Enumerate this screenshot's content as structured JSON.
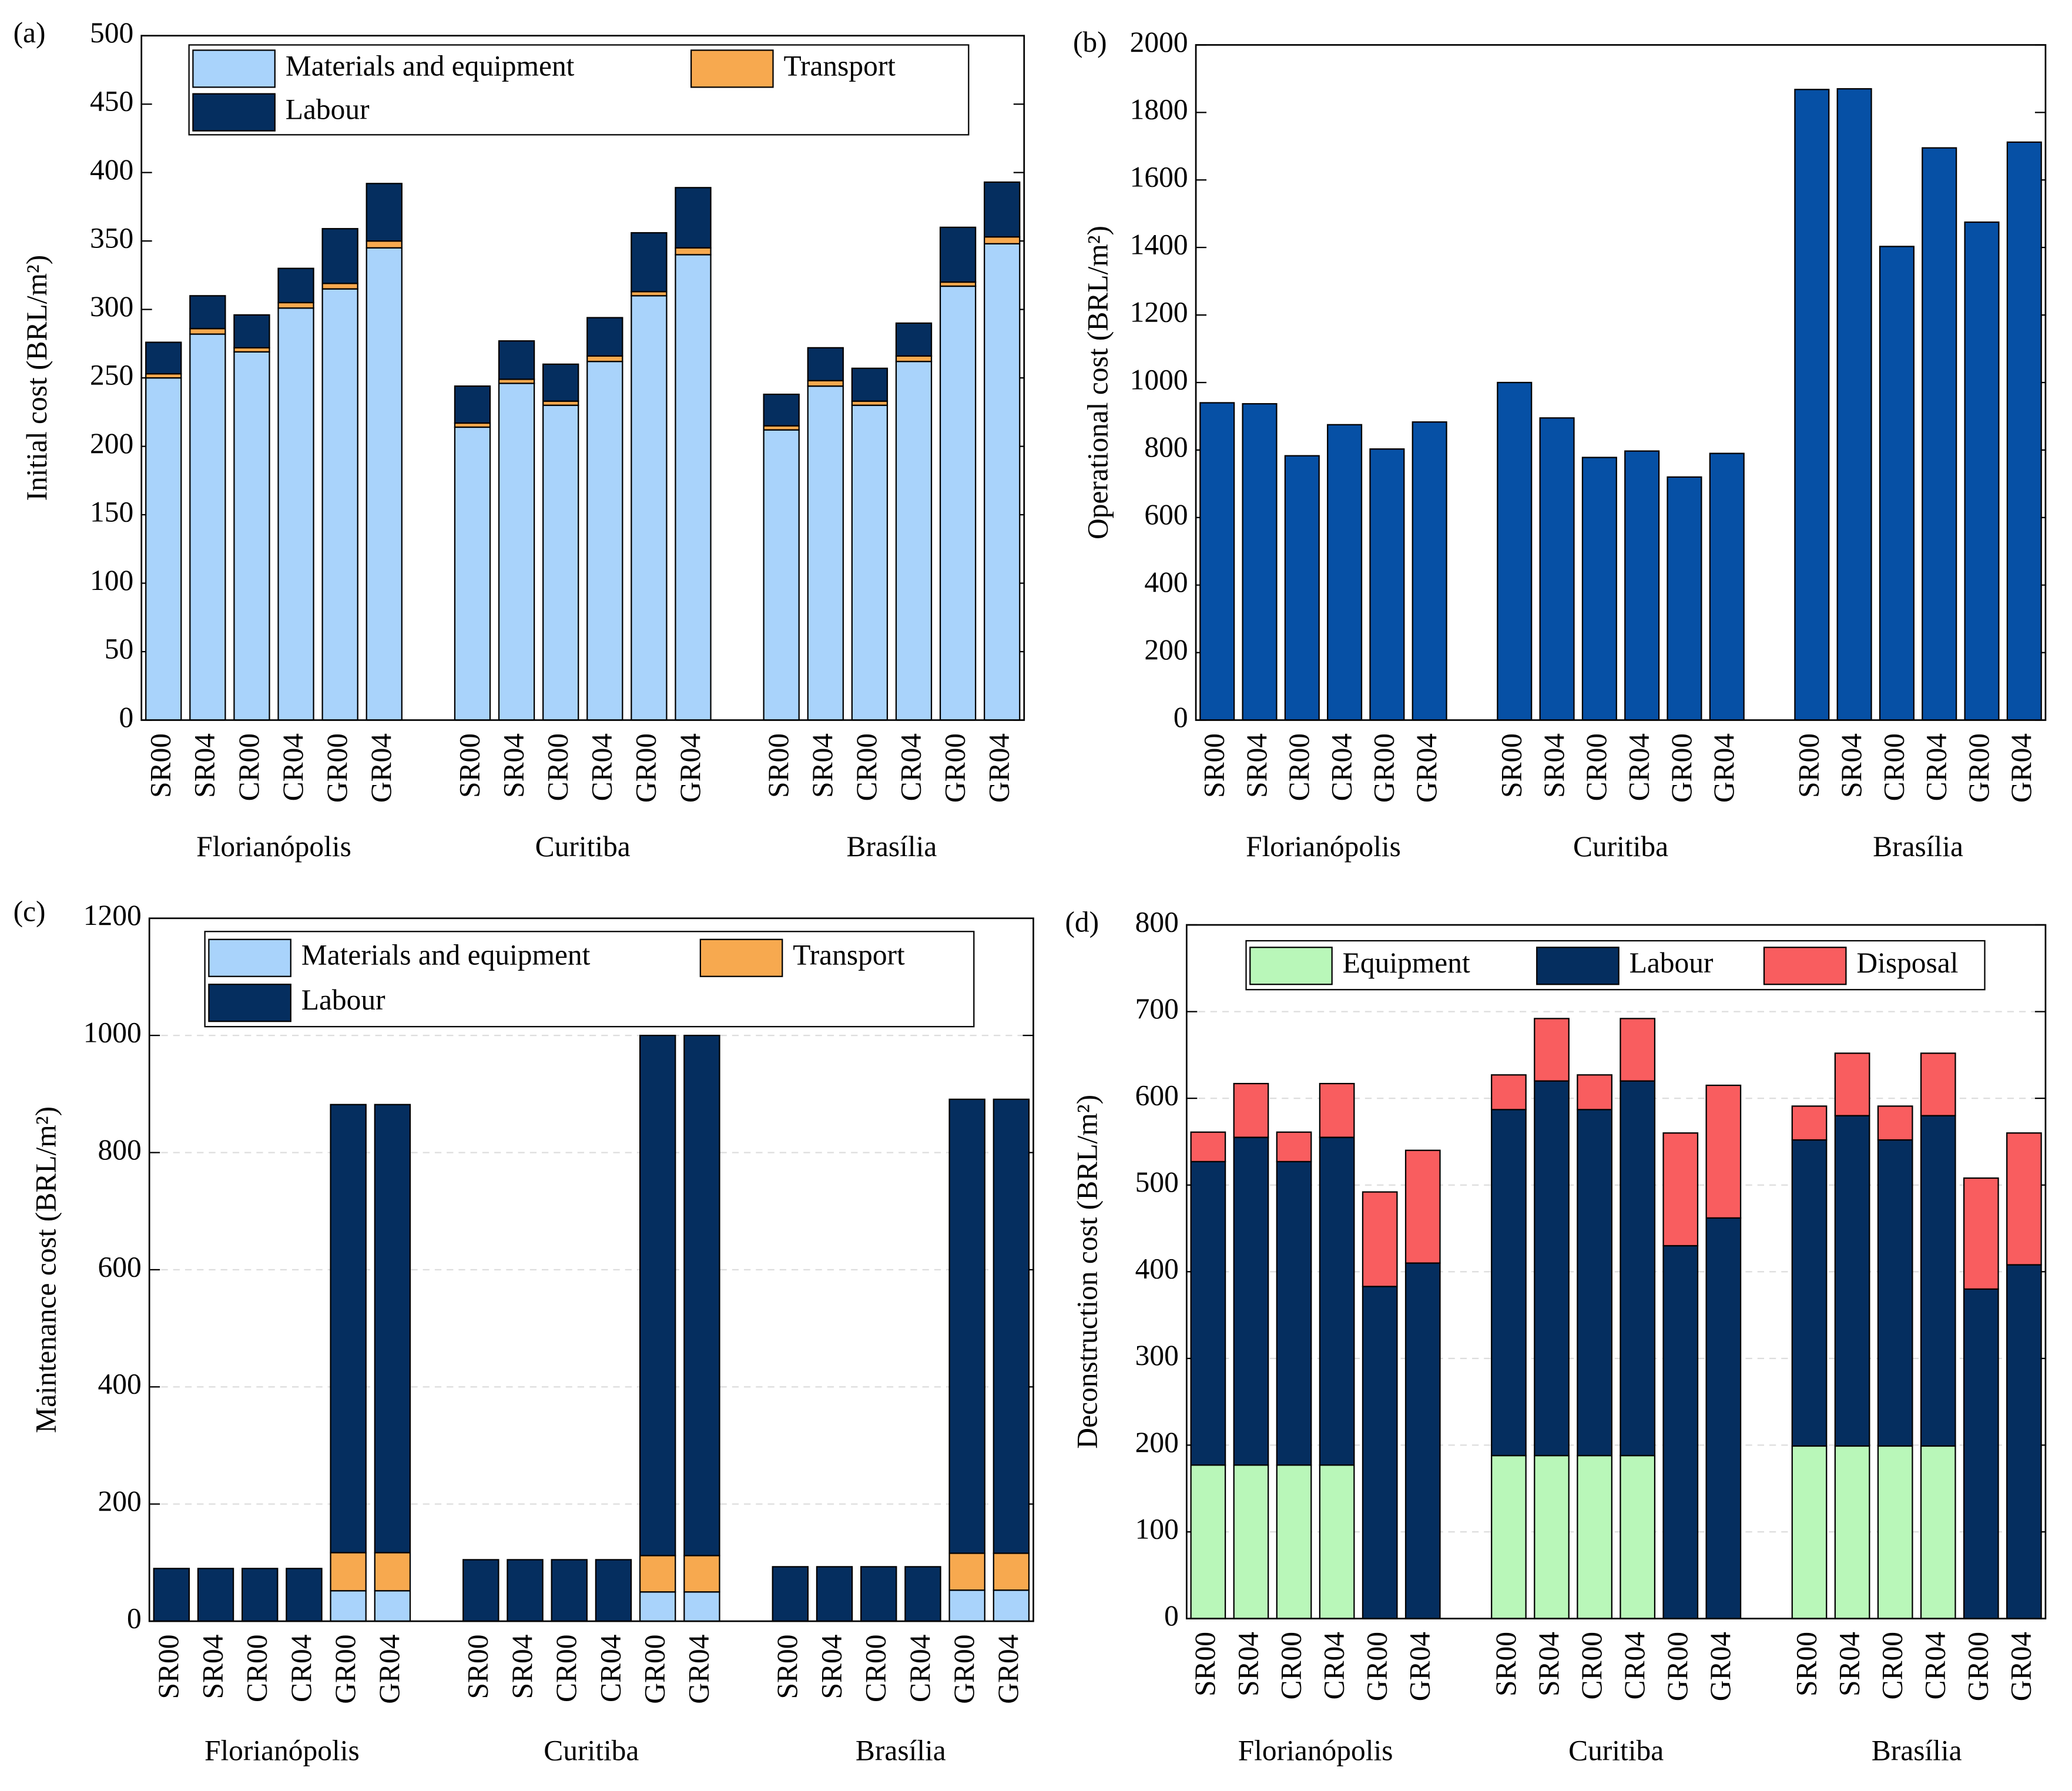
{
  "chart_data": [
    {
      "type": "bar",
      "stacked": true,
      "label": "(a)",
      "y_label": "Initial cost (BRL/m²)",
      "categories": [
        "SR00",
        "SR04",
        "CR00",
        "CR04",
        "GR00",
        "GR04",
        "SR00",
        "SR04",
        "CR00",
        "CR04",
        "GR00",
        "GR04",
        "SR00",
        "SR04",
        "CR00",
        "CR04",
        "GR00",
        "GR04"
      ],
      "groups": [
        "Florianópolis",
        "Curitiba",
        "Brasília"
      ],
      "series": [
        {
          "name": "Materials and equipment",
          "color": "#a9d3fb",
          "values": [
            250,
            282,
            269,
            301,
            315,
            345,
            214,
            246,
            230,
            262,
            310,
            340,
            212,
            244,
            230,
            262,
            317,
            348
          ]
        },
        {
          "name": "Transport",
          "color": "#f7a94f",
          "values": [
            3,
            4,
            3,
            4,
            4,
            5,
            3,
            3,
            3,
            4,
            3,
            5,
            3,
            4,
            3,
            4,
            3,
            5
          ]
        },
        {
          "name": "Labour",
          "color": "#052e5f",
          "values": [
            23,
            24,
            24,
            25,
            40,
            42,
            27,
            28,
            27,
            28,
            43,
            44,
            23,
            24,
            24,
            24,
            40,
            40
          ]
        }
      ],
      "ylim": [
        0,
        500
      ],
      "yticks": [
        0,
        50,
        100,
        150,
        200,
        250,
        300,
        350,
        400,
        450,
        500
      ],
      "grid": false,
      "legend": "upper left"
    },
    {
      "type": "bar",
      "stacked": false,
      "label": "(b)",
      "y_label": "Operational cost (BRL/m²)",
      "categories": [
        "SR00",
        "SR04",
        "CR00",
        "CR04",
        "GR00",
        "GR04",
        "SR00",
        "SR04",
        "CR00",
        "CR04",
        "GR00",
        "GR04",
        "SR00",
        "SR04",
        "CR00",
        "CR04",
        "GR00",
        "GR04"
      ],
      "groups": [
        "Florianópolis",
        "Curitiba",
        "Brasília"
      ],
      "values": [
        940,
        937,
        783,
        875,
        803,
        883,
        1000,
        895,
        778,
        797,
        720,
        790,
        1868,
        1870,
        1403,
        1695,
        1475,
        1712
      ],
      "color": "#0650a5",
      "ylim": [
        0,
        2000
      ],
      "yticks": [
        0,
        200,
        400,
        600,
        800,
        1000,
        1200,
        1400,
        1600,
        1800,
        2000
      ],
      "grid": false
    },
    {
      "type": "bar",
      "stacked": true,
      "label": "(c)",
      "y_label": "Maintenance cost (BRL/m²)",
      "categories": [
        "SR00",
        "SR04",
        "CR00",
        "CR04",
        "GR00",
        "GR04",
        "SR00",
        "SR04",
        "CR00",
        "CR04",
        "GR00",
        "GR04",
        "SR00",
        "SR04",
        "CR00",
        "CR04",
        "GR00",
        "GR04"
      ],
      "groups": [
        "Florianópolis",
        "Curitiba",
        "Brasília"
      ],
      "series": [
        {
          "name": "Materials and equipment",
          "color": "#a9d3fb",
          "values": [
            0,
            0,
            0,
            0,
            52,
            52,
            0,
            0,
            0,
            0,
            50,
            50,
            0,
            0,
            0,
            0,
            53,
            53
          ]
        },
        {
          "name": "Transport",
          "color": "#f7a94f",
          "values": [
            0,
            0,
            0,
            0,
            65,
            65,
            0,
            0,
            0,
            0,
            62,
            62,
            0,
            0,
            0,
            0,
            63,
            63
          ]
        },
        {
          "name": "Labour",
          "color": "#052e5f",
          "values": [
            90,
            90,
            90,
            90,
            765,
            765,
            105,
            105,
            105,
            105,
            888,
            888,
            93,
            93,
            93,
            93,
            775,
            775
          ]
        }
      ],
      "ylim": [
        0,
        1200
      ],
      "yticks": [
        0,
        200,
        400,
        600,
        800,
        1000,
        1200
      ],
      "grid": true,
      "legend": "upper center"
    },
    {
      "type": "bar",
      "stacked": true,
      "label": "(d)",
      "y_label": "Deconstruction cost (BRL/m²)",
      "categories": [
        "SR00",
        "SR04",
        "CR00",
        "CR04",
        "GR00",
        "GR04",
        "SR00",
        "SR04",
        "CR00",
        "CR04",
        "GR00",
        "GR04",
        "SR00",
        "SR04",
        "CR00",
        "CR04",
        "GR00",
        "GR04"
      ],
      "groups": [
        "Florianópolis",
        "Curitiba",
        "Brasília"
      ],
      "series": [
        {
          "name": "Equipment",
          "color": "#b9f7b9",
          "values": [
            177,
            177,
            177,
            177,
            0,
            0,
            188,
            188,
            188,
            188,
            0,
            0,
            199,
            199,
            199,
            199,
            0,
            0
          ]
        },
        {
          "name": "Labour",
          "color": "#052e5f",
          "values": [
            350,
            378,
            350,
            378,
            383,
            410,
            399,
            432,
            399,
            432,
            430,
            462,
            353,
            381,
            353,
            381,
            380,
            408
          ]
        },
        {
          "name": "Disposal",
          "color": "#f95d5f",
          "values": [
            34,
            62,
            34,
            62,
            109,
            130,
            40,
            72,
            40,
            72,
            130,
            153,
            39,
            72,
            39,
            72,
            128,
            152
          ]
        }
      ],
      "ylim": [
        0,
        800
      ],
      "yticks": [
        0,
        100,
        200,
        300,
        400,
        500,
        600,
        700,
        800
      ],
      "grid": true,
      "legend": "upper center"
    }
  ]
}
